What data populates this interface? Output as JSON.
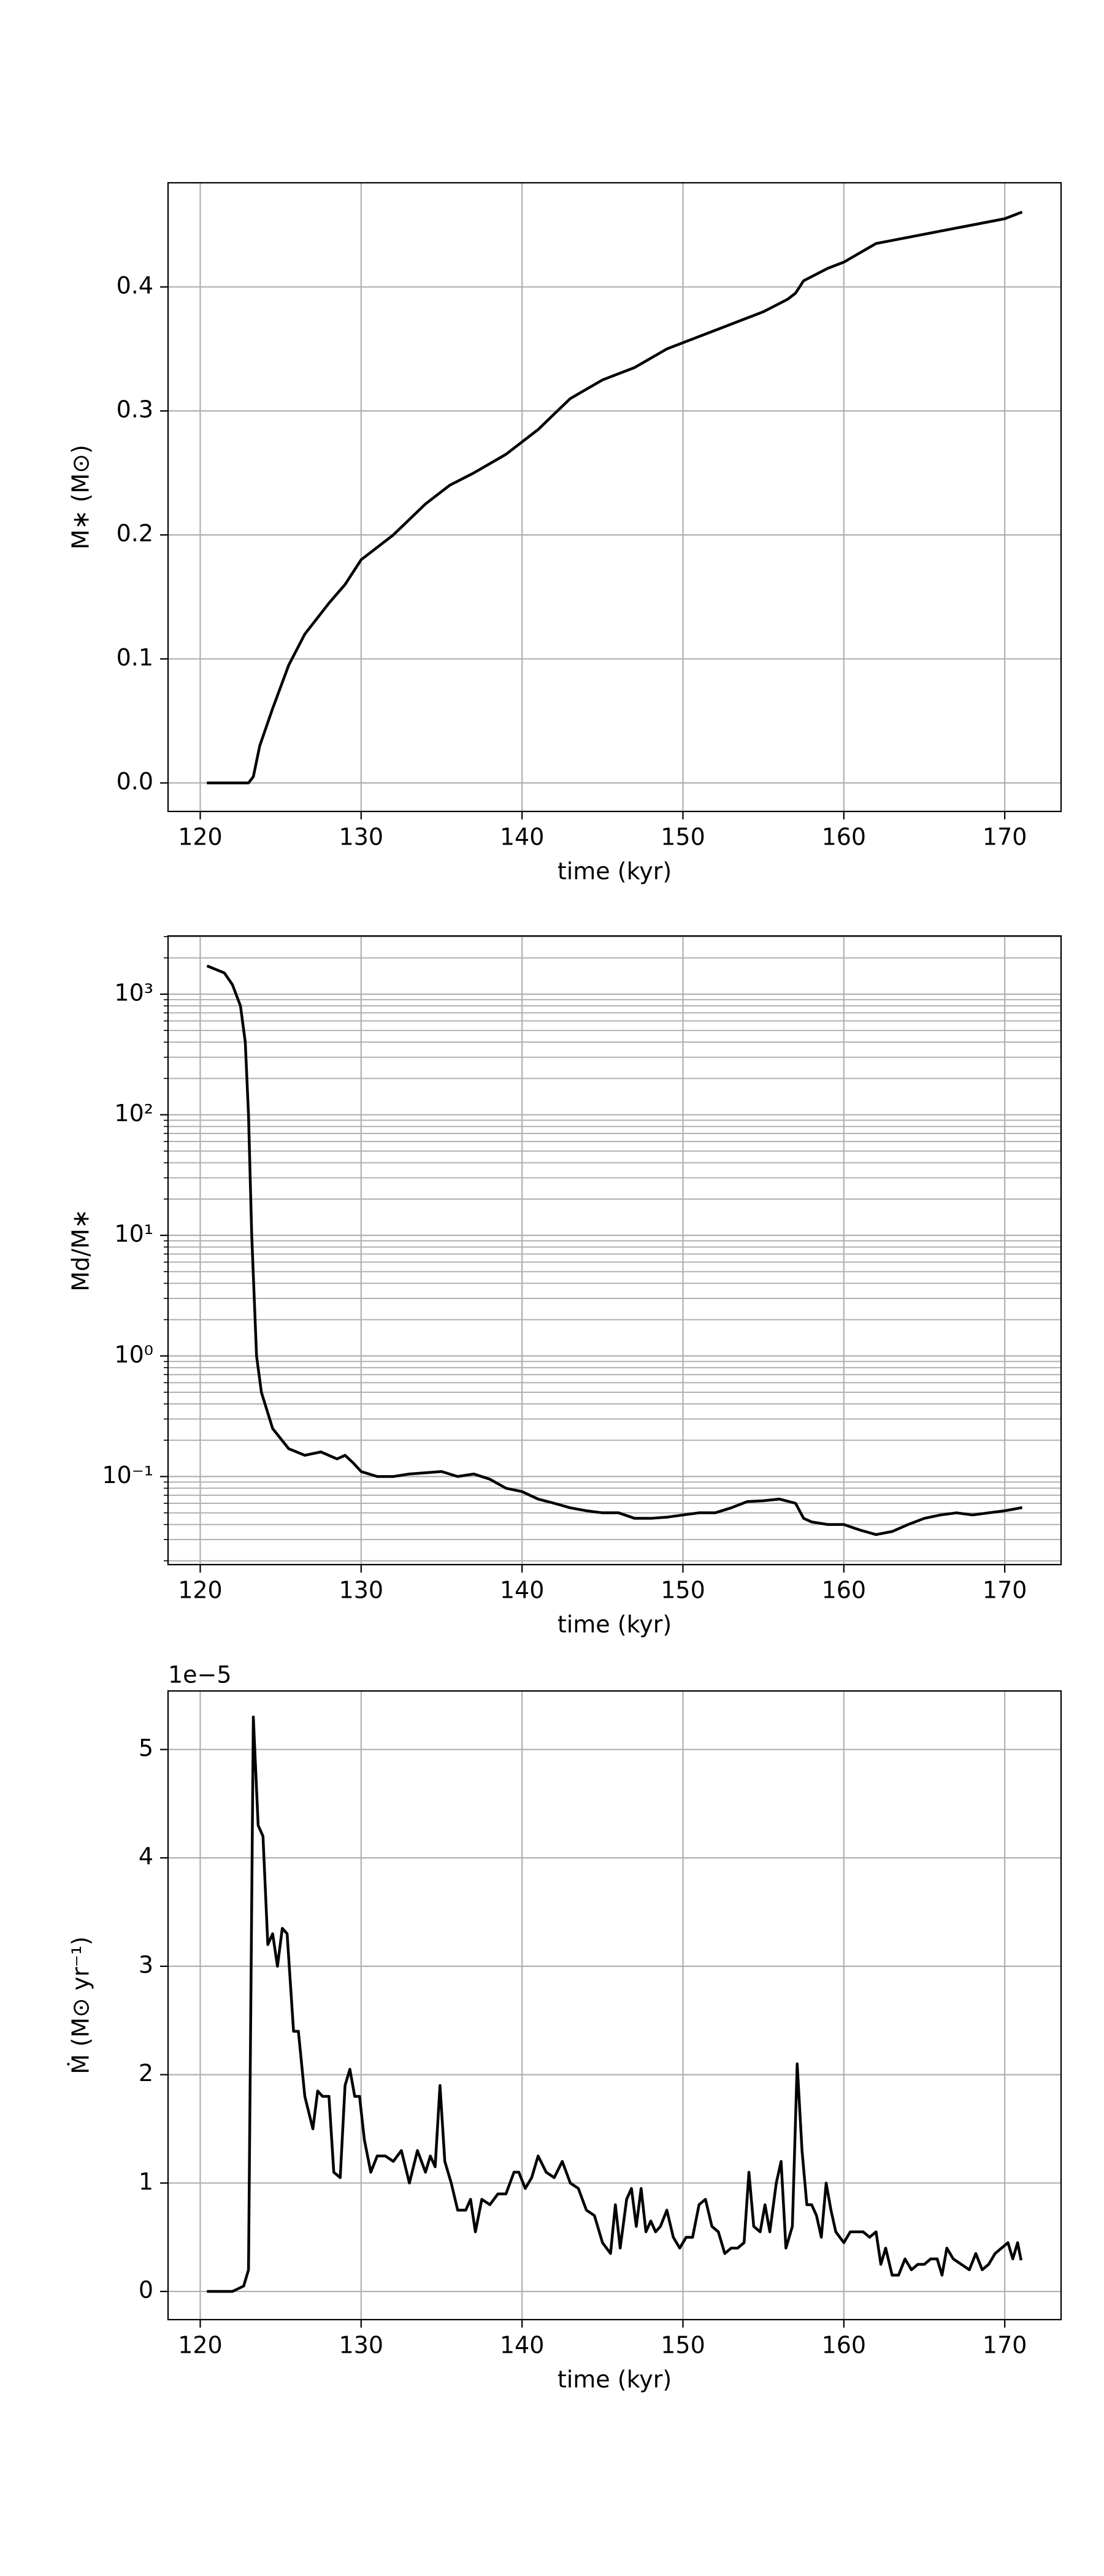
{
  "chart_data": [
    {
      "type": "line",
      "xlabel": "time (kyr)",
      "ylabel": "M∗ (M⊙)",
      "color": "#000000",
      "grid": true,
      "log_y": false,
      "xlim": [
        118.0,
        173.5
      ],
      "xticks": [
        120,
        130,
        140,
        150,
        160,
        170
      ],
      "ylim": [
        -0.023,
        0.484
      ],
      "yticks": [
        {
          "value": 0,
          "label": "0.0"
        },
        0.1,
        0.2,
        0.3,
        0.4
      ],
      "x": [
        120.5,
        122,
        123,
        123.3,
        123.7,
        124.5,
        125.5,
        126.5,
        128,
        129,
        130,
        132,
        134,
        135.5,
        137,
        139,
        141,
        143,
        145,
        147,
        149,
        151,
        153,
        155,
        156.5,
        157,
        157.5,
        159,
        160,
        162,
        164,
        166,
        168,
        170,
        171
      ],
      "values": [
        0,
        0,
        0,
        0.005,
        0.03,
        0.06,
        0.095,
        0.12,
        0.145,
        0.16,
        0.18,
        0.2,
        0.225,
        0.24,
        0.25,
        0.265,
        0.285,
        0.31,
        0.325,
        0.335,
        0.35,
        0.36,
        0.37,
        0.38,
        0.39,
        0.395,
        0.405,
        0.415,
        0.42,
        0.435,
        0.44,
        0.445,
        0.45,
        0.455,
        0.46
      ]
    },
    {
      "type": "line",
      "xlabel": "time (kyr)",
      "ylabel": "Md/M∗",
      "color": "#000000",
      "grid": true,
      "log_y": true,
      "xlim": [
        118.0,
        173.5
      ],
      "xticks": [
        120,
        130,
        140,
        150,
        160,
        170
      ],
      "ylim": [
        0.0186,
        3040
      ],
      "yticks": [
        {
          "value": 0.1,
          "label": "10⁻¹"
        },
        {
          "value": 1,
          "label": "10⁰"
        },
        {
          "value": 10,
          "label": "10¹"
        },
        {
          "value": 100,
          "label": "10²"
        },
        {
          "value": 1000,
          "label": "10³"
        }
      ],
      "minor_yticks": [
        0.02,
        0.03,
        0.04,
        0.05,
        0.06,
        0.07,
        0.08,
        0.09,
        0.2,
        0.3,
        0.4,
        0.5,
        0.6,
        0.7,
        0.8,
        0.9,
        2,
        3,
        4,
        5,
        6,
        7,
        8,
        9,
        20,
        30,
        40,
        50,
        60,
        70,
        80,
        90,
        200,
        300,
        400,
        500,
        600,
        700,
        800,
        900,
        2000,
        3000
      ],
      "x": [
        120.5,
        121.5,
        122,
        122.5,
        122.8,
        123,
        123.2,
        123.5,
        123.8,
        124.5,
        125.5,
        126.5,
        127.5,
        128.5,
        129,
        129.5,
        130,
        131,
        132,
        133,
        135,
        136,
        137,
        138,
        139,
        140,
        141,
        142,
        143,
        144,
        145,
        146,
        147,
        148,
        149,
        150,
        151,
        152,
        153,
        154,
        155,
        156,
        157,
        157.5,
        158,
        159,
        160,
        161,
        162,
        163,
        164,
        165,
        166,
        167,
        168,
        169,
        170,
        171
      ],
      "values": [
        1700,
        1500,
        1200,
        800,
        400,
        100,
        10,
        1,
        0.5,
        0.25,
        0.17,
        0.15,
        0.16,
        0.14,
        0.15,
        0.13,
        0.11,
        0.1,
        0.1,
        0.105,
        0.11,
        0.1,
        0.105,
        0.095,
        0.08,
        0.075,
        0.065,
        0.06,
        0.055,
        0.052,
        0.05,
        0.05,
        0.045,
        0.045,
        0.046,
        0.048,
        0.05,
        0.05,
        0.055,
        0.062,
        0.063,
        0.065,
        0.06,
        0.045,
        0.042,
        0.04,
        0.04,
        0.036,
        0.033,
        0.035,
        0.04,
        0.045,
        0.048,
        0.05,
        0.048,
        0.05,
        0.052,
        0.055
      ]
    },
    {
      "type": "line",
      "xlabel": "time (kyr)",
      "ylabel": "Ṁ (M⊙ yr⁻¹)",
      "offset_text": "1e−5",
      "color": "#000000",
      "grid": true,
      "log_y": false,
      "xlim": [
        118.0,
        173.5
      ],
      "xticks": [
        120,
        130,
        140,
        150,
        160,
        170
      ],
      "ylim": [
        -0.26,
        5.54
      ],
      "yticks": [
        0,
        1,
        2,
        3,
        4,
        5
      ],
      "x": [
        120.5,
        122,
        122.7,
        123,
        123.3,
        123.6,
        123.9,
        124.2,
        124.5,
        124.8,
        125.1,
        125.4,
        125.8,
        126.1,
        126.5,
        127,
        127.3,
        127.6,
        128,
        128.3,
        128.7,
        129,
        129.3,
        129.6,
        129.9,
        130.2,
        130.6,
        131,
        131.5,
        132,
        132.5,
        133,
        133.5,
        134,
        134.3,
        134.6,
        134.9,
        135.2,
        135.6,
        136,
        136.5,
        136.8,
        137.1,
        137.5,
        138,
        138.5,
        139,
        139.5,
        139.8,
        140.2,
        140.6,
        141,
        141.5,
        142,
        142.5,
        143,
        143.5,
        144,
        144.5,
        145,
        145.5,
        145.8,
        146.1,
        146.5,
        146.8,
        147.1,
        147.4,
        147.7,
        148,
        148.3,
        148.6,
        149,
        149.4,
        149.8,
        150.2,
        150.6,
        151,
        151.4,
        151.8,
        152.2,
        152.6,
        153,
        153.4,
        153.8,
        154.1,
        154.4,
        154.8,
        155.1,
        155.4,
        155.8,
        156.1,
        156.4,
        156.8,
        157.1,
        157.4,
        157.7,
        158,
        158.3,
        158.6,
        158.9,
        159.2,
        159.5,
        160,
        160.4,
        160.8,
        161.2,
        161.6,
        162,
        162.3,
        162.6,
        163,
        163.4,
        163.8,
        164.2,
        164.6,
        165,
        165.4,
        165.8,
        166.1,
        166.4,
        166.8,
        167.3,
        167.8,
        168.2,
        168.6,
        169,
        169.4,
        169.8,
        170.2,
        170.5,
        170.8,
        171
      ],
      "values": [
        0,
        0,
        0.05,
        0.2,
        5.3,
        4.3,
        4.2,
        3.2,
        3.3,
        3.0,
        3.35,
        3.3,
        2.4,
        2.4,
        1.8,
        1.5,
        1.85,
        1.8,
        1.8,
        1.1,
        1.05,
        1.9,
        2.05,
        1.8,
        1.8,
        1.4,
        1.1,
        1.25,
        1.25,
        1.2,
        1.3,
        1.0,
        1.3,
        1.1,
        1.25,
        1.15,
        1.9,
        1.2,
        1.0,
        0.75,
        0.75,
        0.85,
        0.55,
        0.85,
        0.8,
        0.9,
        0.9,
        1.1,
        1.1,
        0.95,
        1.05,
        1.25,
        1.1,
        1.05,
        1.2,
        1.0,
        0.95,
        0.75,
        0.7,
        0.45,
        0.35,
        0.8,
        0.4,
        0.85,
        0.95,
        0.6,
        0.95,
        0.55,
        0.65,
        0.55,
        0.6,
        0.75,
        0.5,
        0.4,
        0.5,
        0.5,
        0.8,
        0.85,
        0.6,
        0.55,
        0.35,
        0.4,
        0.4,
        0.45,
        1.1,
        0.6,
        0.55,
        0.8,
        0.55,
        1.0,
        1.2,
        0.4,
        0.6,
        2.1,
        1.3,
        0.8,
        0.8,
        0.7,
        0.5,
        1.0,
        0.75,
        0.55,
        0.45,
        0.55,
        0.55,
        0.55,
        0.5,
        0.55,
        0.25,
        0.4,
        0.15,
        0.15,
        0.3,
        0.2,
        0.25,
        0.25,
        0.3,
        0.3,
        0.15,
        0.4,
        0.3,
        0.25,
        0.2,
        0.35,
        0.2,
        0.25,
        0.35,
        0.4,
        0.45,
        0.3,
        0.45,
        0.3
      ]
    }
  ]
}
